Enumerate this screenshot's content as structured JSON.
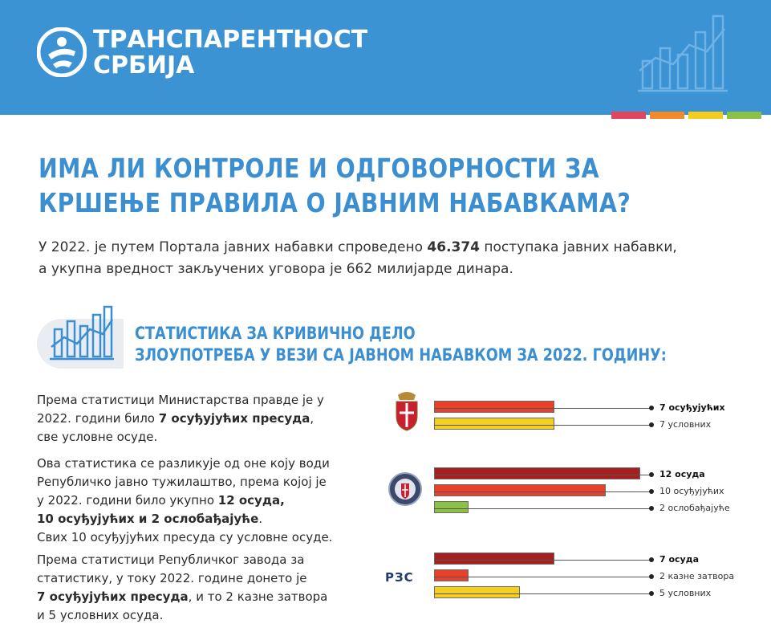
{
  "header": {
    "brand_line1": "ТРАНСПАРЕНТНОСТ",
    "brand_line2": "СРБИЈА",
    "strip_colors": [
      "#e2465f",
      "#f28a2a",
      "#f6cc1b",
      "#8dc143"
    ]
  },
  "title": {
    "line1": "ИМА ЛИ КОНТРОЛЕ И ОДГОВОРНОСТИ ЗА",
    "line2": "КРШЕЊЕ ПРАВИЛА О ЈАВНИМ НАБАВКАМА?"
  },
  "intro": {
    "part1": "У 2022. је путем Портала јавних набавки спроведено ",
    "number": "46.374",
    "part2": " поступака јавних набавки,",
    "line2": "а укупна вредност закључених уговора је 662 милијарде динара."
  },
  "section": {
    "line1": "СТАТИСТИКА ЗА КРИВИЧНО ДЕЛО",
    "line2": "ЗЛОУПОТРЕБА У ВЕЗИ СА ЈАВНОМ НАБАВКОМ ЗА 2022. ГОДИНУ:"
  },
  "para1": {
    "a": "Према статистици Министарства правде је у",
    "b": "2022. години било ",
    "b_bold": "7 осуђујућих пресуда",
    "b_end": ",",
    "c": "све условне осуде."
  },
  "para2": {
    "a": "Ова статистика се разликује од оне коју води",
    "b": "Републичко јавно тужилаштво, према којој је",
    "c": "у 2022. години било укупно ",
    "c_bold": "12 осуда,",
    "d_bold": "10 осуђујућих и 2 ослобађајуће",
    "d_end": ".",
    "e": "Свих 10 осуђујућих пресуда су условне осуде."
  },
  "para3": {
    "a": "Према статистици Републичког завода за",
    "b": "статистику, у току 2022. године донето је",
    "c_bold": "7 осуђујућих пресуда",
    "c_end": ", и то 2 казне затвора",
    "d": "и 5 условних осуда."
  },
  "rzs_logo_text": "РЗС",
  "chart_data": [
    {
      "type": "bar",
      "source": "Министарство правде",
      "categories": [
        "7 осуђујућих",
        "7 условних"
      ],
      "values": [
        7,
        7
      ],
      "colors": [
        "#e8402a",
        "#f6cf1c"
      ],
      "label_bold": [
        true,
        false
      ]
    },
    {
      "type": "bar",
      "source": "Републичко јавно тужилаштво",
      "categories": [
        "12 осуда",
        "10 осуђујућих",
        "2 ослобађајуће"
      ],
      "values": [
        12,
        10,
        2
      ],
      "colors": [
        "#a81d1d",
        "#e8402a",
        "#8dc143"
      ],
      "label_bold": [
        true,
        false,
        false
      ]
    },
    {
      "type": "bar",
      "source": "Републички завод за статистику",
      "categories": [
        "7 осуда",
        "2 казне затвора",
        "5 условних"
      ],
      "values": [
        7,
        2,
        5
      ],
      "colors": [
        "#a81d1d",
        "#e8402a",
        "#f6cf1c"
      ],
      "label_bold": [
        true,
        false,
        false
      ]
    }
  ]
}
